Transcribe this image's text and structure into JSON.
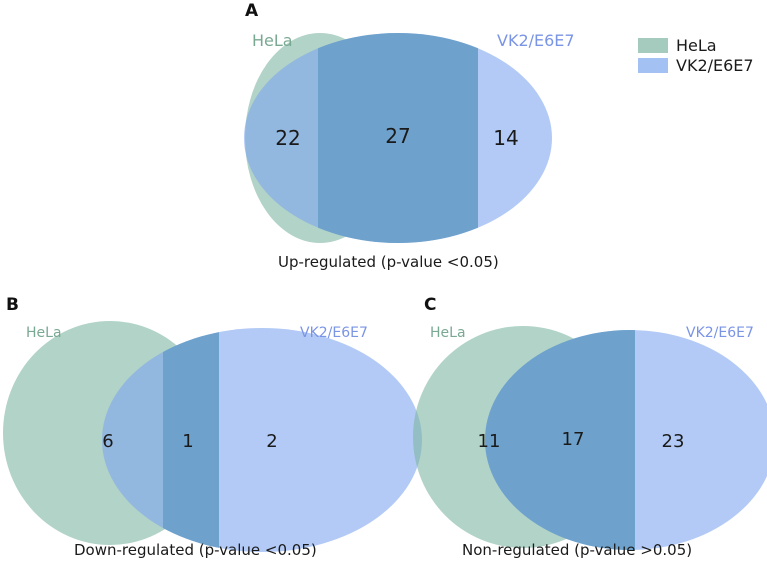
{
  "colors": {
    "hela": "#7fb5a2",
    "vk2": "#7ea6ee",
    "hela_text": "#7aa993",
    "vk2_text": "#7a94e6",
    "overlap_tint": "#6ea2cc"
  },
  "legend": {
    "items": [
      {
        "label": "HeLa"
      },
      {
        "label": "VK2/E6E7"
      }
    ]
  },
  "panels": [
    {
      "letter": "A",
      "set1": "HeLa",
      "set2": "VK2/E6E7",
      "only1": "22",
      "both": "27",
      "only2": "14",
      "caption": "Up-regulated (p-value <0.05)"
    },
    {
      "letter": "B",
      "set1": "HeLa",
      "set2": "VK2/E6E7",
      "only1": "6",
      "both": "1",
      "only2": "2",
      "caption": "Down-regulated (p-value <0.05)"
    },
    {
      "letter": "C",
      "set1": "HeLa",
      "set2": "VK2/E6E7",
      "only1": "11",
      "both": "17",
      "only2": "23",
      "caption": "Non-regulated (p-value >0.05)"
    }
  ]
}
